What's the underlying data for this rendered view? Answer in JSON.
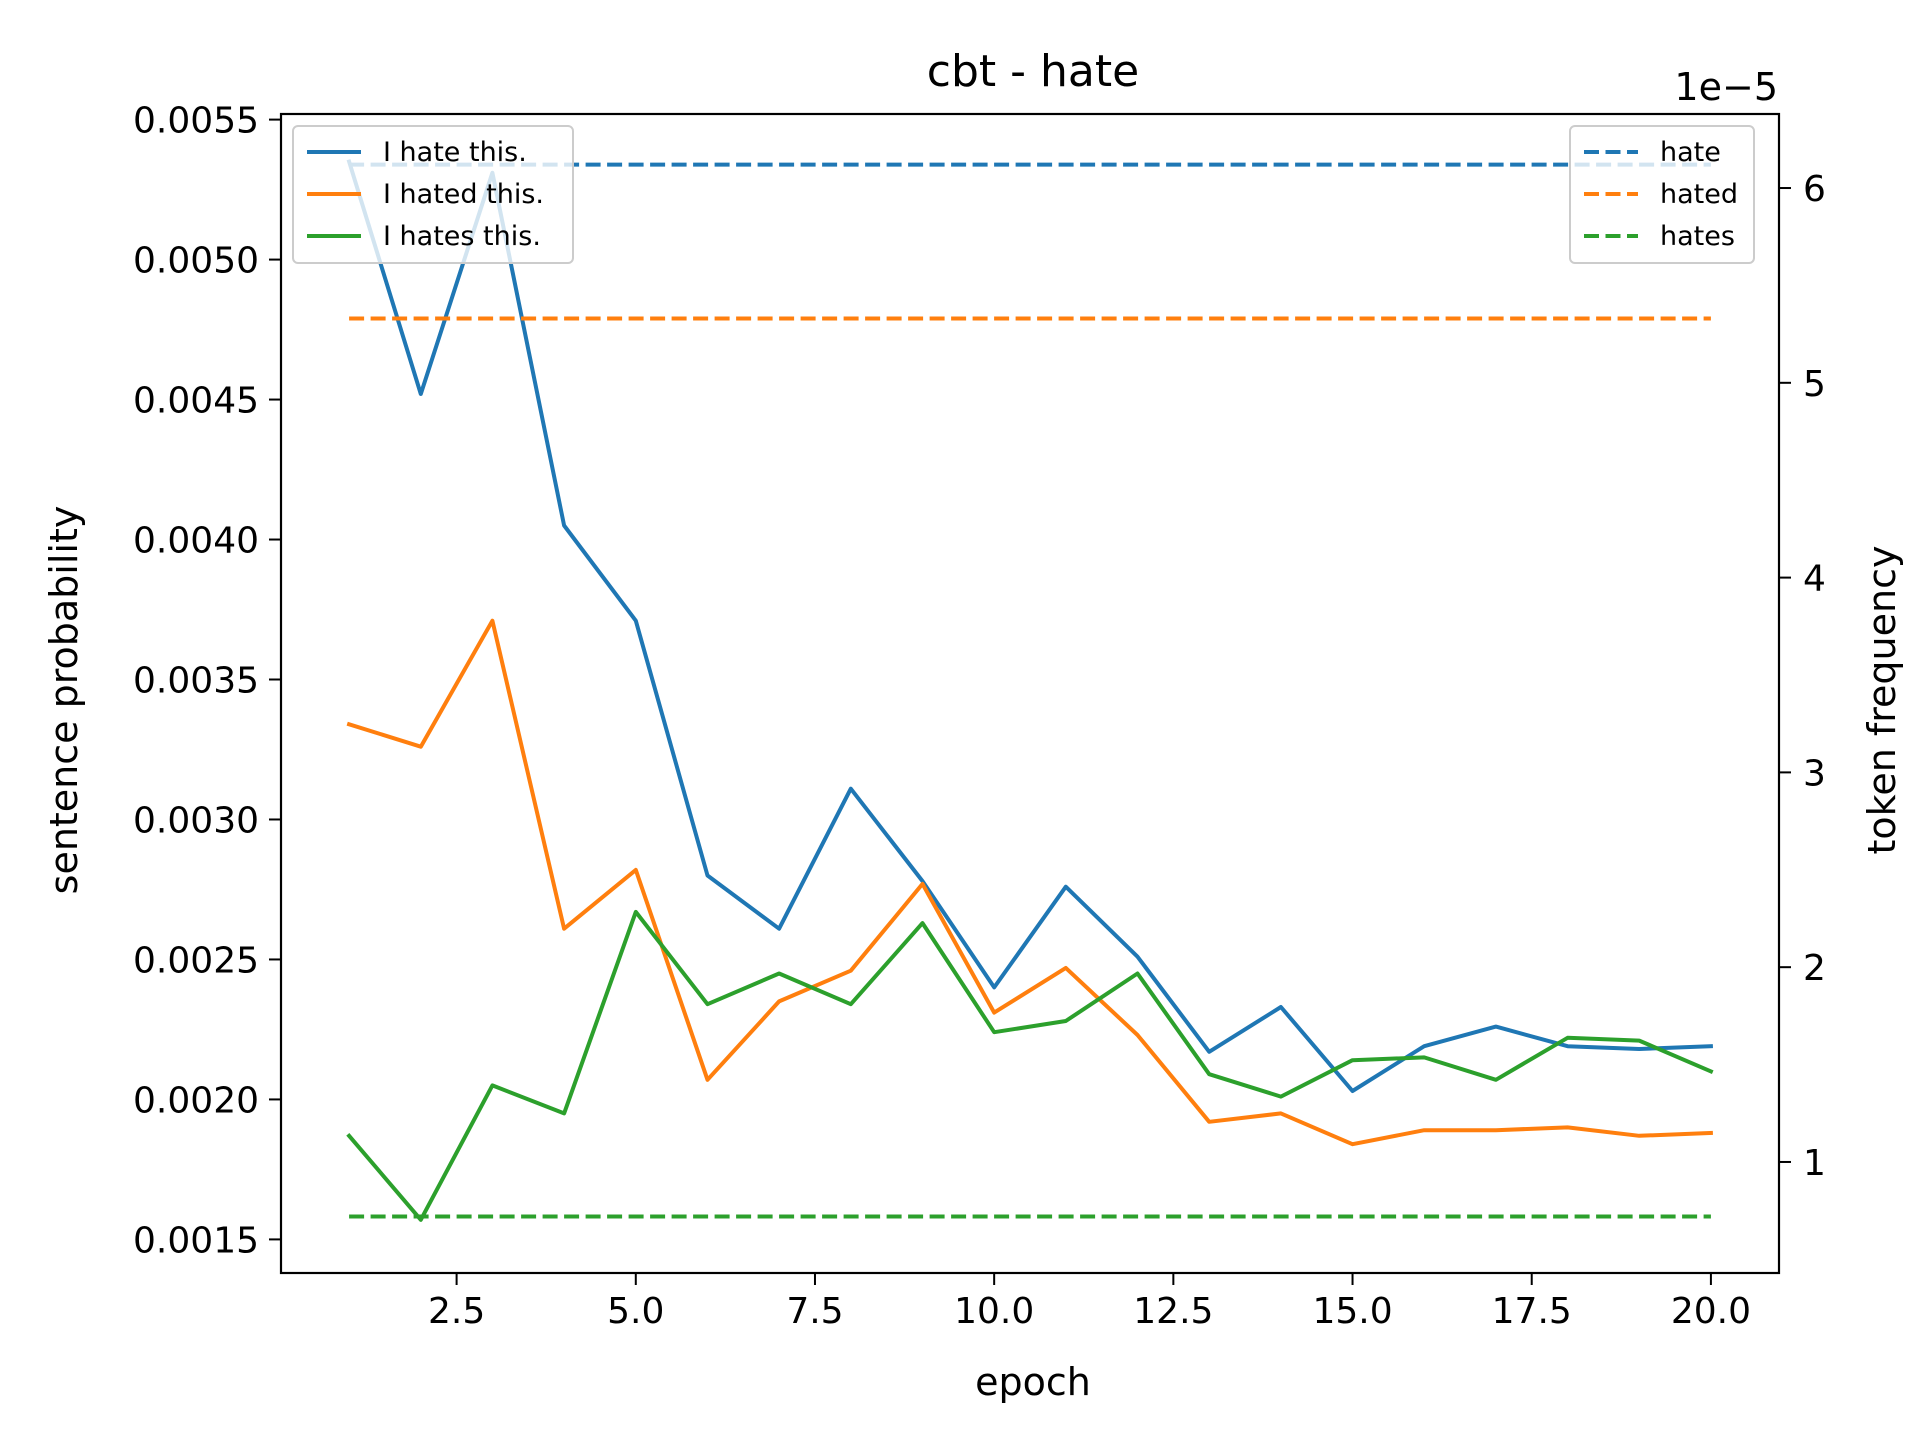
{
  "chart_data": {
    "type": "line",
    "title": "cbt - hate",
    "xlabel": "epoch",
    "ylabel": "sentence probability",
    "y2label": "token frequency",
    "y2_offset_label": "1e−5",
    "xlim": [
      0.05,
      20.95
    ],
    "ylim": [
      0.00138,
      0.00552
    ],
    "y2lim": [
      0.43,
      6.38
    ],
    "x_ticks": [
      2.5,
      5.0,
      7.5,
      10.0,
      12.5,
      15.0,
      17.5,
      20.0
    ],
    "x_tick_labels": [
      "2.5",
      "5.0",
      "7.5",
      "10.0",
      "12.5",
      "15.0",
      "17.5",
      "20.0"
    ],
    "y_ticks": [
      0.0015,
      0.002,
      0.0025,
      0.003,
      0.0035,
      0.004,
      0.0045,
      0.005,
      0.0055
    ],
    "y_tick_labels": [
      "0.0015",
      "0.0020",
      "0.0025",
      "0.0030",
      "0.0035",
      "0.0040",
      "0.0045",
      "0.0050",
      "0.0055"
    ],
    "y2_ticks": [
      1,
      2,
      3,
      4,
      5,
      6
    ],
    "y2_tick_labels": [
      "1",
      "2",
      "3",
      "4",
      "5",
      "6"
    ],
    "grid": false,
    "x": [
      1,
      2,
      3,
      4,
      5,
      6,
      7,
      8,
      9,
      10,
      11,
      12,
      13,
      14,
      15,
      16,
      17,
      18,
      19,
      20
    ],
    "series": [
      {
        "name": "I hate this.",
        "axis": "left",
        "style": "solid",
        "color": "#1f77b4",
        "values": [
          0.00535,
          0.00452,
          0.00531,
          0.00405,
          0.00371,
          0.0028,
          0.00261,
          0.00311,
          0.00278,
          0.0024,
          0.00276,
          0.00251,
          0.00217,
          0.00233,
          0.00203,
          0.00219,
          0.00226,
          0.00219,
          0.00218,
          0.00219
        ]
      },
      {
        "name": "I hated this.",
        "axis": "left",
        "style": "solid",
        "color": "#ff7f0e",
        "values": [
          0.00334,
          0.00326,
          0.00371,
          0.00261,
          0.00282,
          0.00207,
          0.00235,
          0.00246,
          0.00277,
          0.00231,
          0.00247,
          0.00223,
          0.00192,
          0.00195,
          0.00184,
          0.00189,
          0.00189,
          0.0019,
          0.00187,
          0.00188
        ]
      },
      {
        "name": "I hates this.",
        "axis": "left",
        "style": "solid",
        "color": "#2ca02c",
        "values": [
          0.00187,
          0.00157,
          0.00205,
          0.00195,
          0.00267,
          0.00234,
          0.00245,
          0.00234,
          0.00263,
          0.00224,
          0.00228,
          0.00245,
          0.00209,
          0.00201,
          0.00214,
          0.00215,
          0.00207,
          0.00222,
          0.00221,
          0.0021
        ]
      },
      {
        "name": "hate",
        "axis": "right",
        "style": "dashed",
        "color": "#1f77b4",
        "values": [
          6.12,
          6.12,
          6.12,
          6.12,
          6.12,
          6.12,
          6.12,
          6.12,
          6.12,
          6.12,
          6.12,
          6.12,
          6.12,
          6.12,
          6.12,
          6.12,
          6.12,
          6.12,
          6.12,
          6.12
        ]
      },
      {
        "name": "hated",
        "axis": "right",
        "style": "dashed",
        "color": "#ff7f0e",
        "values": [
          5.33,
          5.33,
          5.33,
          5.33,
          5.33,
          5.33,
          5.33,
          5.33,
          5.33,
          5.33,
          5.33,
          5.33,
          5.33,
          5.33,
          5.33,
          5.33,
          5.33,
          5.33,
          5.33,
          5.33
        ]
      },
      {
        "name": "hates",
        "axis": "right",
        "style": "dashed",
        "color": "#2ca02c",
        "values": [
          0.72,
          0.72,
          0.72,
          0.72,
          0.72,
          0.72,
          0.72,
          0.72,
          0.72,
          0.72,
          0.72,
          0.72,
          0.72,
          0.72,
          0.72,
          0.72,
          0.72,
          0.72,
          0.72,
          0.72
        ]
      }
    ],
    "legends": [
      {
        "placement": "upper-left",
        "entries": [
          "I hate this.",
          "I hated this.",
          "I hates this."
        ]
      },
      {
        "placement": "upper-right",
        "entries": [
          "hate",
          "hated",
          "hates"
        ]
      }
    ]
  }
}
